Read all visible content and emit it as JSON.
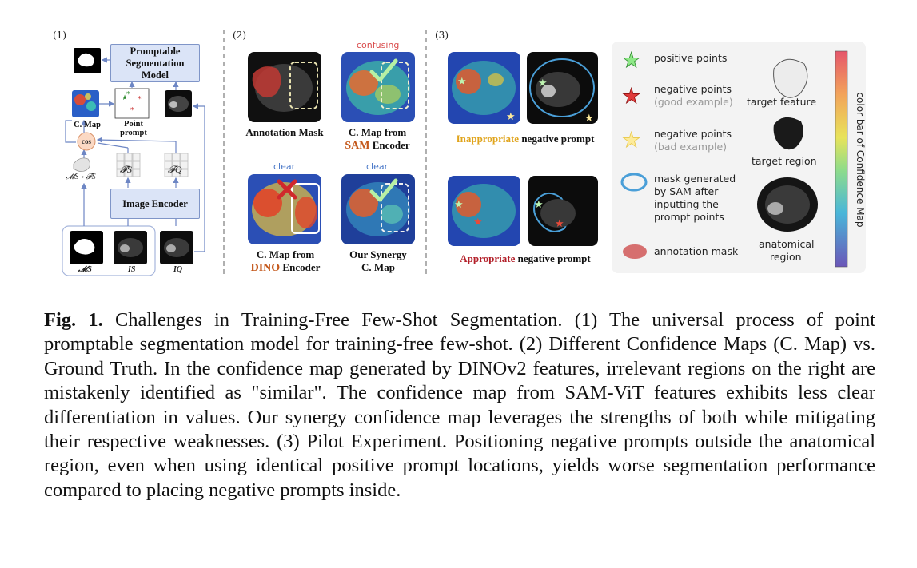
{
  "panel1": {
    "label": "(1)",
    "promptable_box": "Promptable Segmentation Model",
    "image_encoder_box": "Image Encoder",
    "cmap_label": "C. Map",
    "point_prompt_label": "Point prompt",
    "cos_label": "cos",
    "ms_fs_label": "𝓜S ∘ 𝓕S",
    "fs_label": "𝓕S",
    "fq_label": "𝓕Q",
    "ms_label": "𝓜S",
    "is_label": "IS",
    "iq_label": "IQ"
  },
  "panel2": {
    "label": "(2)",
    "confusing": "confusing",
    "clear1": "clear",
    "clear2": "clear",
    "annotation_mask": "Annotation Mask",
    "cmap_sam_line1": "C. Map from",
    "cmap_sam_sam": "SAM",
    "cmap_sam_encoder": "Encoder",
    "cmap_dino_line1": "C. Map from",
    "cmap_dino_dino": "DINO",
    "cmap_dino_encoder": "Encoder",
    "synergy_line1": "Our Synergy",
    "synergy_line2": "C. Map"
  },
  "panel3": {
    "label": "(3)",
    "inappropriate_word": "Inappropriate",
    "inappropriate_rest": "negative prompt",
    "appropriate_word": "Appropriate",
    "appropriate_rest": "negative prompt"
  },
  "legend": {
    "positive": "positive points",
    "negative_good_1": "negative points",
    "negative_good_2": "(good example)",
    "negative_bad_1": "negative points",
    "negative_bad_2": "(bad example)",
    "mask_1": "mask generated",
    "mask_2": "by SAM after",
    "mask_3": "inputting the",
    "mask_4": "prompt points",
    "annotation": "annotation mask",
    "target_feature": "target feature",
    "target_region": "target region",
    "anatomical_1": "anatomical",
    "anatomical_2": "region",
    "colorbar": "color bar of Confidence Map"
  },
  "colors": {
    "inappropriate": "#e0a41c",
    "appropriate": "#b3202a",
    "sam_dino": "#c4581b",
    "note_red": "#d94c4c",
    "note_blue": "#4a78c8"
  },
  "caption": {
    "fig": "Fig. 1.",
    "text": "Challenges in Training-Free Few-Shot Segmentation. (1) The universal process of point promptable segmentation model for training-free few-shot. (2) Different Confidence Maps (C. Map) vs. Ground Truth. In the confidence map generated by DINOv2 features, irrelevant regions on the right are mistakenly identified as \"similar\". The confidence map from SAM-ViT features exhibits less clear differentiation in values. Our synergy confidence map leverages the strengths of both while mitigating their respective weaknesses. (3) Pilot Experiment. Positioning negative prompts outside the anatomical region, even when using identical positive prompt locations, yields worse segmentation performance compared to placing negative prompts inside."
  }
}
